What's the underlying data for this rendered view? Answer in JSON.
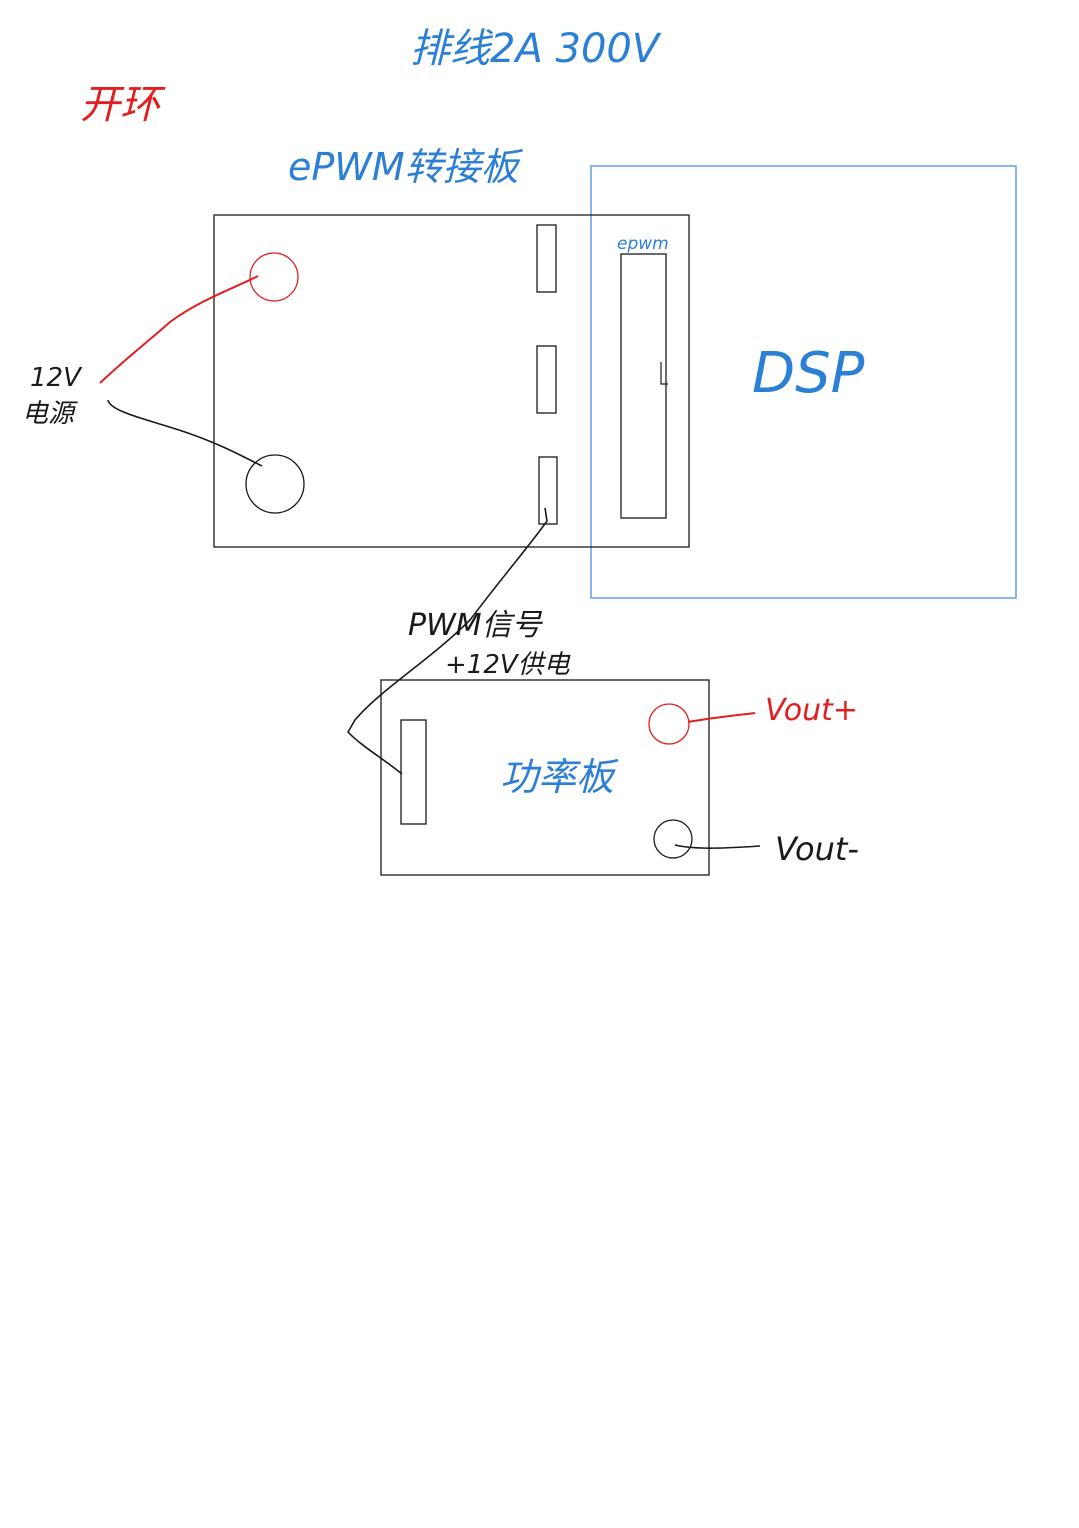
{
  "title": "排线2A 300V",
  "open_loop_label": "开环",
  "epwm_board": {
    "label": "ePWM转接板"
  },
  "dsp": {
    "label": "DSP",
    "connector_label": "epwm"
  },
  "power_supply": {
    "label_line1": "12V",
    "label_line2": "电源"
  },
  "pwm_cable": {
    "label_line1": "PWM信号",
    "label_line2": "+12V供电"
  },
  "power_board": {
    "label": "功率板"
  },
  "outputs": {
    "vout_plus": "Vout+",
    "vout_minus": "Vout-"
  },
  "colors": {
    "blue": "#2b7fd4",
    "red": "#e02020",
    "black": "#1a1a1a",
    "dsp_border": "#5aa0e0"
  }
}
